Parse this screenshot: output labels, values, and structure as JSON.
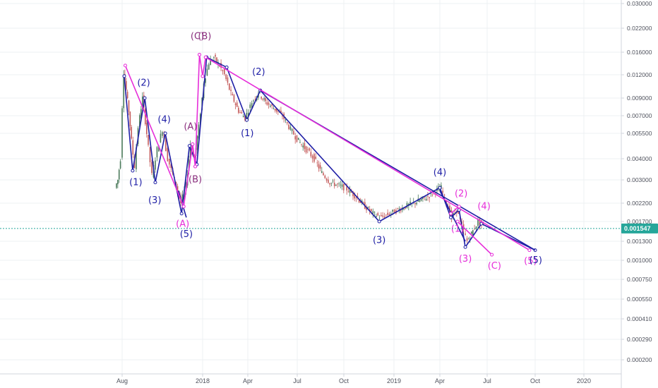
{
  "colors": {
    "blue": "#1f1fa6",
    "magenta": "#e62ed9",
    "purple_label": "#8a2f7e",
    "candle_up": "#4a7a5a",
    "candle_down": "#c45a5a",
    "current_price": "#26a69a"
  },
  "current_price_label": "0.001547",
  "chart_data": {
    "type": "line",
    "title": "",
    "y_scale": "log",
    "x_ticks": [
      "Aug",
      "2018",
      "Apr",
      "Jul",
      "Oct",
      "2019",
      "Apr",
      "Jul",
      "Oct",
      "2020"
    ],
    "x_tick_dates": [
      "2017-08-01",
      "2018-01-01",
      "2018-04-01",
      "2018-07-01",
      "2018-10-01",
      "2019-01-01",
      "2019-04-01",
      "2019-07-01",
      "2019-10-01",
      "2020-01-01"
    ],
    "y_ticks": [
      0.03,
      0.022,
      0.016,
      0.012,
      0.009,
      0.007,
      0.0055,
      0.004,
      0.003,
      0.0022,
      0.0017,
      0.0013,
      0.001,
      0.00075,
      0.00055,
      0.00041,
      0.00029,
      0.0002
    ],
    "y_tick_labels": [
      "0.030000",
      "0.022000",
      "0.016000",
      "0.012000",
      "0.009000",
      "0.007000",
      "0.005500",
      "0.004000",
      "0.003000",
      "0.002200",
      "0.001700",
      "0.001300",
      "0.001000",
      "0.000750",
      "0.000550",
      "0.000410",
      "0.000290",
      "0.000200"
    ],
    "current_price": 0.001547,
    "price_series": [
      {
        "x": "2017-07-20",
        "y": 0.0027
      },
      {
        "x": "2017-07-25",
        "y": 0.003
      },
      {
        "x": "2017-07-30",
        "y": 0.004
      },
      {
        "x": "2017-08-03",
        "y": 0.008
      },
      {
        "x": "2017-08-05",
        "y": 0.0125
      },
      {
        "x": "2017-08-10",
        "y": 0.01
      },
      {
        "x": "2017-08-15",
        "y": 0.0075
      },
      {
        "x": "2017-08-20",
        "y": 0.005
      },
      {
        "x": "2017-08-26",
        "y": 0.0036
      },
      {
        "x": "2017-09-02",
        "y": 0.006
      },
      {
        "x": "2017-09-10",
        "y": 0.009
      },
      {
        "x": "2017-09-18",
        "y": 0.0055
      },
      {
        "x": "2017-09-28",
        "y": 0.0032
      },
      {
        "x": "2017-10-08",
        "y": 0.0045
      },
      {
        "x": "2017-10-18",
        "y": 0.0058
      },
      {
        "x": "2017-10-28",
        "y": 0.004
      },
      {
        "x": "2017-11-10",
        "y": 0.003
      },
      {
        "x": "2017-11-22",
        "y": 0.0022
      },
      {
        "x": "2017-12-02",
        "y": 0.0028
      },
      {
        "x": "2017-12-10",
        "y": 0.0048
      },
      {
        "x": "2017-12-18",
        "y": 0.004
      },
      {
        "x": "2017-12-26",
        "y": 0.006
      },
      {
        "x": "2018-01-05",
        "y": 0.011
      },
      {
        "x": "2018-01-15",
        "y": 0.014
      },
      {
        "x": "2018-01-25",
        "y": 0.015
      },
      {
        "x": "2018-02-05",
        "y": 0.0135
      },
      {
        "x": "2018-02-15",
        "y": 0.012
      },
      {
        "x": "2018-02-28",
        "y": 0.0095
      },
      {
        "x": "2018-03-15",
        "y": 0.0075
      },
      {
        "x": "2018-03-28",
        "y": 0.0068
      },
      {
        "x": "2018-04-10",
        "y": 0.0085
      },
      {
        "x": "2018-04-22",
        "y": 0.0097
      },
      {
        "x": "2018-05-05",
        "y": 0.0085
      },
      {
        "x": "2018-05-20",
        "y": 0.0078
      },
      {
        "x": "2018-06-05",
        "y": 0.007
      },
      {
        "x": "2018-06-20",
        "y": 0.0058
      },
      {
        "x": "2018-07-05",
        "y": 0.005
      },
      {
        "x": "2018-07-20",
        "y": 0.0045
      },
      {
        "x": "2018-08-05",
        "y": 0.004
      },
      {
        "x": "2018-08-20",
        "y": 0.0033
      },
      {
        "x": "2018-09-05",
        "y": 0.0029
      },
      {
        "x": "2018-09-20",
        "y": 0.0028
      },
      {
        "x": "2018-10-05",
        "y": 0.0027
      },
      {
        "x": "2018-10-25",
        "y": 0.0024
      },
      {
        "x": "2018-11-10",
        "y": 0.0021
      },
      {
        "x": "2018-11-25",
        "y": 0.0019
      },
      {
        "x": "2018-12-10",
        "y": 0.0018
      },
      {
        "x": "2018-12-25",
        "y": 0.0019
      },
      {
        "x": "2019-01-10",
        "y": 0.002
      },
      {
        "x": "2019-01-25",
        "y": 0.0021
      },
      {
        "x": "2019-02-10",
        "y": 0.0022
      },
      {
        "x": "2019-02-25",
        "y": 0.0023
      },
      {
        "x": "2019-03-10",
        "y": 0.0024
      },
      {
        "x": "2019-03-25",
        "y": 0.0026
      },
      {
        "x": "2019-04-05",
        "y": 0.0027
      },
      {
        "x": "2019-04-15",
        "y": 0.0022
      },
      {
        "x": "2019-04-25",
        "y": 0.0018
      },
      {
        "x": "2019-05-05",
        "y": 0.002
      },
      {
        "x": "2019-05-15",
        "y": 0.0016
      },
      {
        "x": "2019-05-25",
        "y": 0.0013
      },
      {
        "x": "2019-06-05",
        "y": 0.0015
      },
      {
        "x": "2019-06-15",
        "y": 0.0017
      },
      {
        "x": "2019-06-25",
        "y": 0.0016
      }
    ],
    "blue_wave_lines": [
      {
        "x": "2017-08-05",
        "y": 0.0118
      },
      {
        "x": "2017-08-21",
        "y": 0.0034
      },
      {
        "x": "2017-09-13",
        "y": 0.009
      },
      {
        "x": "2017-10-03",
        "y": 0.0029
      },
      {
        "x": "2017-10-22",
        "y": 0.0055
      },
      {
        "x": "2017-11-22",
        "y": 0.0019
      },
      {
        "x": "2017-12-07",
        "y": 0.0047
      },
      {
        "x": "2017-12-21",
        "y": 0.0037
      },
      {
        "x": "2018-01-09",
        "y": 0.015
      },
      {
        "x": "2018-02-18",
        "y": 0.0132
      },
      {
        "x": "2018-03-30",
        "y": 0.0066
      },
      {
        "x": "2018-04-24",
        "y": 0.0099
      },
      {
        "x": "2018-12-05",
        "y": 0.0017
      },
      {
        "x": "2019-04-01",
        "y": 0.0027
      },
      {
        "x": "2019-04-22",
        "y": 0.0018
      },
      {
        "x": "2019-05-08",
        "y": 0.002
      },
      {
        "x": "2019-05-20",
        "y": 0.0012
      },
      {
        "x": "2019-06-20",
        "y": 0.00165
      },
      {
        "x": "2019-10-01",
        "y": 0.00115
      }
    ],
    "blue_side_lines": [
      [
        {
          "x": "2017-11-16",
          "y": 0.0026
        },
        {
          "x": "2017-12-01",
          "y": 0.0018
        }
      ],
      [
        {
          "x": "2018-04-24",
          "y": 0.0099
        },
        {
          "x": "2019-10-01",
          "y": 0.00115
        }
      ],
      [
        {
          "x": "2019-04-01",
          "y": 0.0026
        },
        {
          "x": "2019-05-20",
          "y": 0.0013
        }
      ]
    ],
    "magenta_lines": [
      [
        {
          "x": "2017-08-07",
          "y": 0.0135
        },
        {
          "x": "2017-11-26",
          "y": 0.0021
        }
      ],
      [
        {
          "x": "2017-11-26",
          "y": 0.0021
        },
        {
          "x": "2017-12-13",
          "y": 0.0048
        }
      ],
      [
        {
          "x": "2017-12-13",
          "y": 0.0048
        },
        {
          "x": "2017-12-18",
          "y": 0.0036
        }
      ],
      [
        {
          "x": "2017-12-18",
          "y": 0.0036
        },
        {
          "x": "2017-12-26",
          "y": 0.0155
        }
      ],
      [
        {
          "x": "2017-12-26",
          "y": 0.0155
        },
        {
          "x": "2018-01-01",
          "y": 0.0118
        }
      ],
      [
        {
          "x": "2018-01-01",
          "y": 0.0118
        },
        {
          "x": "2018-01-07",
          "y": 0.015
        }
      ],
      [
        {
          "x": "2018-01-07",
          "y": 0.015
        },
        {
          "x": "2019-09-20",
          "y": 0.00115
        }
      ],
      [
        {
          "x": "2019-04-22",
          "y": 0.0019
        },
        {
          "x": "2019-05-08",
          "y": 0.0021
        }
      ],
      [
        {
          "x": "2019-05-05",
          "y": 0.0017
        },
        {
          "x": "2019-07-10",
          "y": 0.00108
        }
      ]
    ],
    "wave_labels": [
      {
        "text": "(1)",
        "x": "2017-08-27",
        "y": 0.0028,
        "color": "blue"
      },
      {
        "text": "(2)",
        "x": "2017-09-11",
        "y": 0.0105,
        "color": "blue"
      },
      {
        "text": "(3)",
        "x": "2017-10-02",
        "y": 0.0022,
        "color": "blue"
      },
      {
        "text": "(4)",
        "x": "2017-10-20",
        "y": 0.0064,
        "color": "blue"
      },
      {
        "text": "(5)",
        "x": "2017-12-01",
        "y": 0.00138,
        "color": "blue"
      },
      {
        "text": "(A)",
        "x": "2017-12-09",
        "y": 0.0058,
        "color": "purple_label"
      },
      {
        "text": "(B)",
        "x": "2017-12-18",
        "y": 0.0029,
        "color": "purple_label"
      },
      {
        "text": "(A)",
        "x": "2017-11-24",
        "y": 0.00158,
        "color": "magenta"
      },
      {
        "text": "(C)",
        "x": "2017-12-22",
        "y": 0.019,
        "color": "purple_label"
      },
      {
        "text": "(B)",
        "x": "2018-01-05",
        "y": 0.019,
        "color": "purple_label"
      },
      {
        "text": "(1)",
        "x": "2018-03-31",
        "y": 0.0053,
        "color": "blue"
      },
      {
        "text": "(2)",
        "x": "2018-04-21",
        "y": 0.012,
        "color": "blue"
      },
      {
        "text": "(3)",
        "x": "2018-12-05",
        "y": 0.00127,
        "color": "blue"
      },
      {
        "text": "(4)",
        "x": "2019-04-01",
        "y": 0.0032,
        "color": "blue"
      },
      {
        "text": "(2)",
        "x": "2019-05-12",
        "y": 0.0024,
        "color": "magenta"
      },
      {
        "text": "(1)",
        "x": "2019-05-05",
        "y": 0.00148,
        "color": "magenta"
      },
      {
        "text": "(3)",
        "x": "2019-05-20",
        "y": 0.00098,
        "color": "magenta"
      },
      {
        "text": "(4)",
        "x": "2019-06-25",
        "y": 0.00202,
        "color": "magenta"
      },
      {
        "text": "(C)",
        "x": "2019-07-15",
        "y": 0.00088,
        "color": "magenta"
      },
      {
        "text": "(5)",
        "x": "2019-09-22",
        "y": 0.00095,
        "color": "magenta"
      },
      {
        "text": "(5)",
        "x": "2019-10-02",
        "y": 0.00096,
        "color": "blue"
      }
    ]
  }
}
